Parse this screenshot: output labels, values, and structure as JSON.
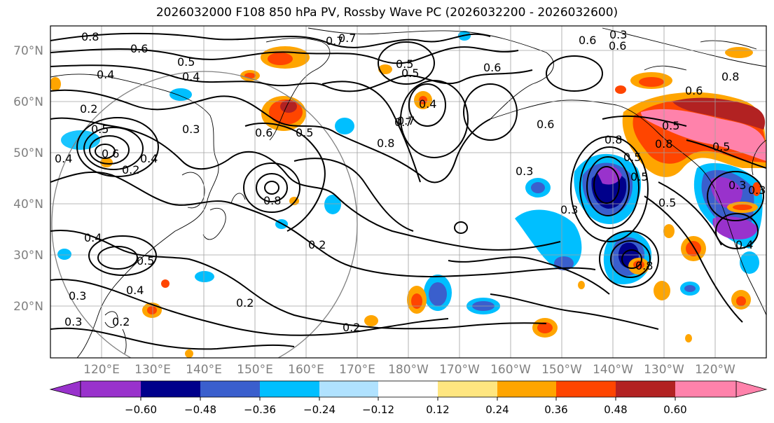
{
  "title": "2026032000 F108 850 hPa PV, Rossby Wave PC (2026032200 - 2026032600)",
  "lat_labels": [
    "70°N",
    "60°N",
    "50°N",
    "40°N",
    "30°N",
    "20°N"
  ],
  "lon_labels": [
    "120°E",
    "130°E",
    "140°E",
    "150°E",
    "160°E",
    "170°E",
    "180°W",
    "170°W",
    "160°W",
    "150°W",
    "140°W",
    "130°W",
    "120°W"
  ],
  "colorbar": {
    "ticks": [
      "−0.60",
      "−0.48",
      "−0.36",
      "−0.24",
      "−0.12",
      "0.12",
      "0.24",
      "0.36",
      "0.48",
      "0.60"
    ],
    "colors": [
      "#9932cc",
      "#00008b",
      "#3a5fcd",
      "#00bfff",
      "#b0e2ff",
      "#ffffff",
      "#ffe680",
      "#ffa500",
      "#ff4500",
      "#b22222",
      "#ff82ab"
    ]
  },
  "contour_labels": [
    "0.8",
    "0.7",
    "0.6",
    "0.5",
    "0.4",
    "0.2",
    "0.7",
    "0.6",
    "0.5",
    "0.4",
    "0.8",
    "0.6",
    "0.5",
    "0.6",
    "0.5",
    "0.8",
    "0.2",
    "0.2",
    "0.3",
    "0.3",
    "0.4",
    "0.3",
    "0.3",
    "0.2",
    "0.4",
    "0.5",
    "0.4",
    "0.3",
    "0.8",
    "0.7",
    "0.6",
    "0.5",
    "0.8",
    "0.6",
    "0.5",
    "0.4",
    "0.3",
    "0.3",
    "0.8",
    "0.8",
    "0.5",
    "0.5",
    "0.4",
    "0.6",
    "0.7",
    "0.5",
    "0.4",
    "0.5",
    "0.2",
    "0.2",
    "0.3",
    "0.6"
  ]
}
